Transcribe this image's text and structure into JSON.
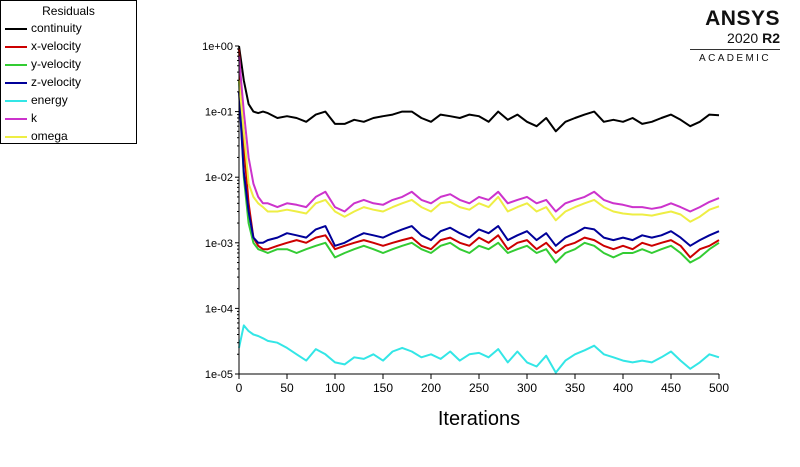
{
  "legend": {
    "title": "Residuals",
    "items": [
      {
        "label": "continuity",
        "color": "#000000"
      },
      {
        "label": "x-velocity",
        "color": "#cc0000"
      },
      {
        "label": "y-velocity",
        "color": "#33cc33"
      },
      {
        "label": "z-velocity",
        "color": "#000099"
      },
      {
        "label": "energy",
        "color": "#33e6e6"
      },
      {
        "label": "k",
        "color": "#cc33cc"
      },
      {
        "label": "omega",
        "color": "#eeee44"
      }
    ]
  },
  "brand": {
    "name": "ANSYS",
    "version": "2020",
    "release": "R2",
    "edition": "ACADEMIC"
  },
  "chart_data": {
    "type": "line",
    "title": "",
    "xlabel": "Iterations",
    "ylabel": "",
    "xlim": [
      0,
      500
    ],
    "ylim": [
      1e-05,
      1
    ],
    "yscale": "log",
    "grid": false,
    "legend_position": "top-left",
    "x_ticks": [
      0,
      50,
      100,
      150,
      200,
      250,
      300,
      350,
      400,
      450,
      500
    ],
    "x_tick_labels": [
      "0",
      "50",
      "100",
      "150",
      "200",
      "250",
      "300",
      "350",
      "400",
      "450",
      "500"
    ],
    "y_ticks": [
      1e-05,
      0.0001,
      0.001,
      0.01,
      0.1,
      1
    ],
    "y_tick_labels": [
      "1e-05",
      "1e-04",
      "1e-03",
      "1e-02",
      "1e-01",
      "1e+00"
    ],
    "x": [
      0,
      5,
      10,
      15,
      20,
      25,
      30,
      40,
      50,
      60,
      70,
      80,
      90,
      100,
      110,
      120,
      130,
      140,
      150,
      160,
      170,
      180,
      190,
      200,
      210,
      220,
      230,
      240,
      250,
      260,
      270,
      280,
      290,
      300,
      310,
      320,
      330,
      340,
      350,
      360,
      370,
      380,
      390,
      400,
      410,
      420,
      430,
      440,
      450,
      460,
      470,
      480,
      490,
      500
    ],
    "series": [
      {
        "name": "continuity",
        "color": "#000000",
        "values": [
          1.0,
          0.3,
          0.13,
          0.1,
          0.095,
          0.1,
          0.095,
          0.08,
          0.085,
          0.08,
          0.07,
          0.09,
          0.1,
          0.065,
          0.065,
          0.075,
          0.07,
          0.08,
          0.085,
          0.09,
          0.1,
          0.1,
          0.08,
          0.07,
          0.09,
          0.085,
          0.08,
          0.09,
          0.085,
          0.07,
          0.1,
          0.075,
          0.09,
          0.07,
          0.06,
          0.08,
          0.05,
          0.07,
          0.08,
          0.09,
          0.1,
          0.07,
          0.075,
          0.07,
          0.08,
          0.065,
          0.07,
          0.08,
          0.09,
          0.075,
          0.06,
          0.07,
          0.09,
          0.088
        ]
      },
      {
        "name": "x-velocity",
        "color": "#cc0000",
        "values": [
          0.9,
          0.03,
          0.004,
          0.0012,
          0.0009,
          0.0008,
          0.0008,
          0.0009,
          0.001,
          0.0011,
          0.001,
          0.0012,
          0.0013,
          0.0008,
          0.0009,
          0.001,
          0.0011,
          0.001,
          0.0009,
          0.001,
          0.0011,
          0.0012,
          0.0009,
          0.0008,
          0.0011,
          0.0012,
          0.001,
          0.0009,
          0.0012,
          0.001,
          0.0013,
          0.0008,
          0.001,
          0.0011,
          0.0008,
          0.001,
          0.0007,
          0.0009,
          0.001,
          0.0012,
          0.0011,
          0.0009,
          0.0008,
          0.0009,
          0.0008,
          0.001,
          0.0009,
          0.001,
          0.0011,
          0.0009,
          0.0006,
          0.0008,
          0.0009,
          0.0011
        ]
      },
      {
        "name": "y-velocity",
        "color": "#33cc33",
        "values": [
          0.3,
          0.01,
          0.002,
          0.001,
          0.0008,
          0.00075,
          0.0007,
          0.0008,
          0.0008,
          0.0007,
          0.0008,
          0.0009,
          0.001,
          0.0006,
          0.0007,
          0.0008,
          0.0009,
          0.0008,
          0.0007,
          0.0008,
          0.0009,
          0.001,
          0.0008,
          0.0007,
          0.0009,
          0.001,
          0.0008,
          0.0007,
          0.0009,
          0.0008,
          0.001,
          0.0007,
          0.0008,
          0.0009,
          0.0007,
          0.0008,
          0.0005,
          0.0007,
          0.0008,
          0.001,
          0.0009,
          0.0007,
          0.0006,
          0.0007,
          0.0007,
          0.0008,
          0.0007,
          0.0008,
          0.0009,
          0.0007,
          0.0005,
          0.0006,
          0.0008,
          0.001
        ]
      },
      {
        "name": "z-velocity",
        "color": "#000099",
        "values": [
          0.2,
          0.012,
          0.003,
          0.0012,
          0.001,
          0.001,
          0.0011,
          0.0012,
          0.0014,
          0.0013,
          0.0012,
          0.0016,
          0.0018,
          0.0009,
          0.001,
          0.0012,
          0.0014,
          0.0013,
          0.0012,
          0.0014,
          0.0016,
          0.0018,
          0.0013,
          0.0011,
          0.0015,
          0.0017,
          0.0014,
          0.0012,
          0.0016,
          0.0014,
          0.0018,
          0.0011,
          0.0013,
          0.0015,
          0.0011,
          0.0014,
          0.0009,
          0.0012,
          0.0014,
          0.0017,
          0.0016,
          0.0012,
          0.0011,
          0.0012,
          0.0011,
          0.0013,
          0.0012,
          0.0013,
          0.0015,
          0.0012,
          0.0009,
          0.0011,
          0.0013,
          0.0015
        ]
      },
      {
        "name": "energy",
        "color": "#33e6e6",
        "values": [
          2.5e-05,
          5.5e-05,
          4.5e-05,
          4e-05,
          3.8e-05,
          3.5e-05,
          3.2e-05,
          3e-05,
          2.5e-05,
          2e-05,
          1.6e-05,
          2.4e-05,
          2e-05,
          1.5e-05,
          1.4e-05,
          1.8e-05,
          1.7e-05,
          2e-05,
          1.6e-05,
          2.2e-05,
          2.5e-05,
          2.2e-05,
          1.8e-05,
          2e-05,
          1.7e-05,
          2.2e-05,
          1.6e-05,
          2e-05,
          2.1e-05,
          1.8e-05,
          2.4e-05,
          1.5e-05,
          2.2e-05,
          1.5e-05,
          1.3e-05,
          1.9e-05,
          1.05e-05,
          1.6e-05,
          2e-05,
          2.3e-05,
          2.7e-05,
          2e-05,
          1.8e-05,
          1.6e-05,
          1.5e-05,
          1.6e-05,
          1.5e-05,
          1.8e-05,
          2.2e-05,
          1.6e-05,
          1.2e-05,
          1.5e-05,
          2e-05,
          1.8e-05
        ]
      },
      {
        "name": "k",
        "color": "#cc33cc",
        "values": [
          0.7,
          0.1,
          0.02,
          0.008,
          0.005,
          0.004,
          0.004,
          0.0035,
          0.004,
          0.0038,
          0.0035,
          0.005,
          0.006,
          0.0035,
          0.003,
          0.004,
          0.0045,
          0.004,
          0.0038,
          0.0045,
          0.005,
          0.006,
          0.0045,
          0.004,
          0.005,
          0.0055,
          0.0045,
          0.004,
          0.005,
          0.0045,
          0.006,
          0.004,
          0.0045,
          0.005,
          0.004,
          0.0045,
          0.003,
          0.004,
          0.0045,
          0.005,
          0.006,
          0.0045,
          0.004,
          0.0038,
          0.0035,
          0.0035,
          0.0033,
          0.0035,
          0.004,
          0.0035,
          0.003,
          0.0035,
          0.0042,
          0.0048
        ]
      },
      {
        "name": "omega",
        "color": "#eeee44",
        "values": [
          0.3,
          0.05,
          0.008,
          0.005,
          0.004,
          0.0035,
          0.003,
          0.003,
          0.0032,
          0.003,
          0.0028,
          0.004,
          0.0045,
          0.003,
          0.0025,
          0.003,
          0.0035,
          0.0032,
          0.003,
          0.0035,
          0.004,
          0.0045,
          0.0035,
          0.003,
          0.004,
          0.0042,
          0.0035,
          0.0032,
          0.004,
          0.0035,
          0.005,
          0.003,
          0.0035,
          0.004,
          0.003,
          0.0035,
          0.0022,
          0.003,
          0.0035,
          0.004,
          0.0045,
          0.0035,
          0.003,
          0.0028,
          0.0027,
          0.0027,
          0.0026,
          0.0028,
          0.003,
          0.0027,
          0.0021,
          0.0025,
          0.0032,
          0.0036
        ]
      }
    ]
  }
}
